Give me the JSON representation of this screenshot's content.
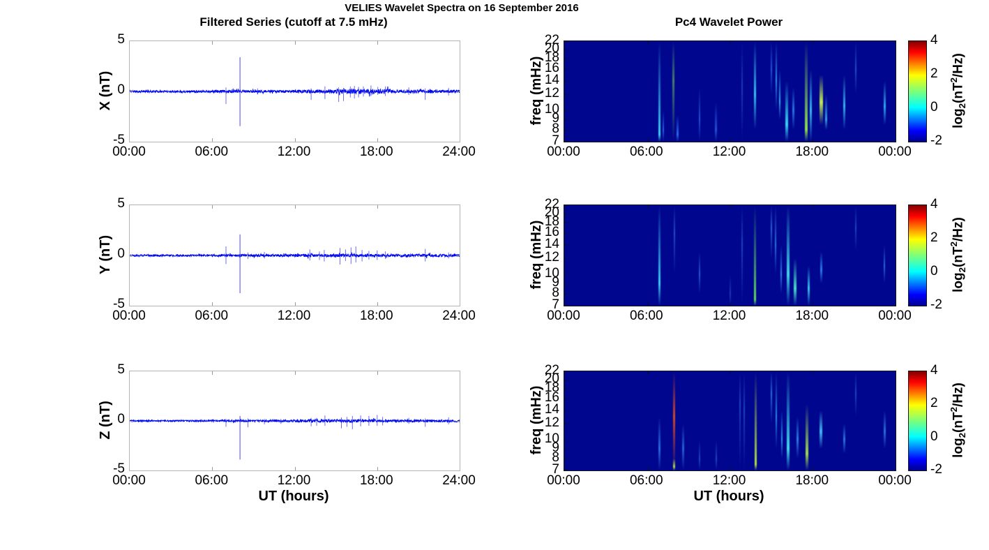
{
  "figure": {
    "main_title": "VELIES Wavelet Spectra on 16 September 2016",
    "background": "#ffffff"
  },
  "chart_data": {
    "time_series": {
      "type": "line",
      "title": "Filtered Series (cutoff at 7.5 mHz)",
      "xlabel": "UT (hours)",
      "x_ticks": [
        "00:00",
        "06:00",
        "12:00",
        "18:00",
        "24:00"
      ],
      "x_range_hours": [
        0,
        24
      ],
      "ylim": [
        -5,
        5
      ],
      "y_ticks": [
        "5",
        "0",
        "-5"
      ],
      "grid": false,
      "line_color": "#0008ee",
      "spike_color": "#3c3cf4",
      "panels": [
        {
          "ylabel": "X (nT)",
          "noise_profile": [
            [
              0,
              6,
              0.07
            ],
            [
              6,
              9,
              0.09
            ],
            [
              9,
              12,
              0.08
            ],
            [
              12,
              15,
              0.11
            ],
            [
              15,
              19,
              0.16
            ],
            [
              19,
              22,
              0.12
            ],
            [
              22,
              24,
              0.1
            ]
          ],
          "spikes": [
            [
              7.0,
              0.4,
              -1.25
            ],
            [
              8.02,
              3.4,
              -3.45
            ],
            [
              9.3,
              0.3,
              -0.3
            ],
            [
              13.2,
              0.3,
              -0.85
            ],
            [
              14.2,
              0.5,
              -0.75
            ],
            [
              15.2,
              0.4,
              -1.05
            ],
            [
              15.55,
              0.35,
              -0.95
            ],
            [
              16.05,
              0.5,
              -0.6
            ],
            [
              16.35,
              0.55,
              -0.7
            ],
            [
              16.65,
              0.45,
              -0.6
            ],
            [
              17.0,
              0.5,
              -0.5
            ],
            [
              17.55,
              0.6,
              -0.45
            ],
            [
              18.05,
              0.45,
              -0.35
            ],
            [
              18.6,
              0.5,
              -0.45
            ],
            [
              20.3,
              0.4,
              -0.35
            ],
            [
              21.5,
              0.3,
              -0.85
            ],
            [
              23.2,
              0.35,
              -0.4
            ]
          ]
        },
        {
          "ylabel": "Y (nT)",
          "noise_profile": [
            [
              0,
              6,
              0.06
            ],
            [
              6,
              12,
              0.08
            ],
            [
              12,
              18,
              0.1
            ],
            [
              18,
              24,
              0.09
            ]
          ],
          "spikes": [
            [
              7.0,
              0.9,
              -0.85
            ],
            [
              8.02,
              2.1,
              -3.75
            ],
            [
              8.6,
              0.3,
              -0.35
            ],
            [
              9.8,
              0.35,
              -0.3
            ],
            [
              13.1,
              0.6,
              -0.5
            ],
            [
              13.8,
              0.4,
              -0.45
            ],
            [
              14.15,
              0.55,
              -0.6
            ],
            [
              15.3,
              0.75,
              -0.9
            ],
            [
              15.7,
              0.6,
              -0.55
            ],
            [
              16.1,
              0.8,
              -0.85
            ],
            [
              16.45,
              0.9,
              -0.7
            ],
            [
              16.9,
              0.55,
              -0.6
            ],
            [
              17.4,
              0.45,
              -0.4
            ],
            [
              18.0,
              0.5,
              -0.45
            ],
            [
              18.6,
              0.4,
              -0.35
            ],
            [
              21.5,
              0.65,
              -0.6
            ],
            [
              23.2,
              0.3,
              -0.3
            ]
          ]
        },
        {
          "ylabel": "Z (nT)",
          "noise_profile": [
            [
              0,
              6,
              0.05
            ],
            [
              6,
              12,
              0.07
            ],
            [
              12,
              18,
              0.1
            ],
            [
              18,
              24,
              0.08
            ]
          ],
          "spikes": [
            [
              7.0,
              0.2,
              -0.6
            ],
            [
              8.02,
              0.5,
              -3.9
            ],
            [
              8.6,
              0.25,
              -0.65
            ],
            [
              9.8,
              0.2,
              -0.35
            ],
            [
              11.0,
              0.2,
              -0.3
            ],
            [
              13.2,
              0.3,
              -0.55
            ],
            [
              13.6,
              0.3,
              -0.5
            ],
            [
              14.2,
              0.55,
              -0.5
            ],
            [
              15.4,
              0.35,
              -0.75
            ],
            [
              15.8,
              0.4,
              -0.6
            ],
            [
              16.2,
              0.5,
              -0.85
            ],
            [
              16.8,
              0.55,
              -0.55
            ],
            [
              17.4,
              0.5,
              -0.5
            ],
            [
              18.0,
              0.6,
              -0.5
            ],
            [
              18.4,
              0.4,
              -0.45
            ],
            [
              20.3,
              0.3,
              -0.3
            ],
            [
              21.5,
              0.25,
              -0.6
            ],
            [
              23.2,
              0.35,
              -0.35
            ]
          ]
        }
      ]
    },
    "spectrograms": {
      "type": "heatmap",
      "title": "Pc4 Wavelet Power",
      "xlabel": "UT (hours)",
      "ylabel": "freq (mHz)",
      "x_ticks": [
        "00:00",
        "06:00",
        "12:00",
        "18:00",
        "00:00"
      ],
      "x_range_hours": [
        0,
        24
      ],
      "y_scale": "log",
      "y_ticks": [
        "22",
        "20",
        "18",
        "16",
        "14",
        "12",
        "10",
        "9",
        "8",
        "7"
      ],
      "freq_range_mhz": [
        7,
        22
      ],
      "background_color": "#00068e",
      "colorbar": {
        "ticks": [
          "4",
          "2",
          "0",
          "-2"
        ],
        "range": [
          -2,
          4
        ],
        "label_parts": {
          "prefix": "log",
          "sub": "2",
          "mid": "(nT",
          "sup": "2",
          "suffix": "/Hz)"
        },
        "gradient_stops": [
          [
            0,
            "#00008f"
          ],
          [
            0.11,
            "#0000ff"
          ],
          [
            0.34,
            "#00ffff"
          ],
          [
            0.5,
            "#7dff7a"
          ],
          [
            0.66,
            "#ffff00"
          ],
          [
            0.89,
            "#ff0000"
          ],
          [
            1,
            "#800000"
          ]
        ]
      },
      "panels": [
        {
          "component": "X",
          "streaks": [
            [
              6.9,
              7,
              22,
              7.6,
              "#3fd4f2",
              3
            ],
            [
              7.15,
              7,
              10,
              8,
              "#2a66e0",
              2
            ],
            [
              7.92,
              7,
              22,
              14,
              "#47806a",
              3
            ],
            [
              8.2,
              7,
              9.5,
              7.6,
              "#2a6ce8",
              3
            ],
            [
              9.8,
              7,
              13,
              9,
              "#2455d8",
              2
            ],
            [
              11.0,
              7,
              11,
              8,
              "#2452d4",
              3
            ],
            [
              12.9,
              7,
              22,
              13,
              "#1c3cba",
              2
            ],
            [
              13.8,
              8,
              22,
              12,
              "#38c4f2",
              3
            ],
            [
              15.0,
              12,
              22,
              16,
              "#2456d6",
              2
            ],
            [
              15.35,
              10,
              22,
              14,
              "#3390e6",
              2
            ],
            [
              15.6,
              9,
              16,
              11,
              "#34aef0",
              2
            ],
            [
              16.1,
              7,
              14,
              8.5,
              "#35d6f6",
              4
            ],
            [
              16.6,
              8,
              13,
              10,
              "#2a78e4",
              3
            ],
            [
              17.55,
              7,
              22,
              8,
              "#8fe04e",
              4
            ],
            [
              17.85,
              7,
              16,
              10,
              "#38bef0",
              3
            ],
            [
              18.6,
              8.5,
              15,
              11,
              "#c0ea52",
              5
            ],
            [
              18.95,
              8,
              12,
              9,
              "#34a4e8",
              3
            ],
            [
              20.3,
              8,
              15,
              10.5,
              "#38b4ee",
              3
            ],
            [
              21.1,
              12,
              22,
              16,
              "#2450cc",
              2
            ],
            [
              23.2,
              8.5,
              14,
              10.5,
              "#32acee",
              3
            ]
          ]
        },
        {
          "component": "Y",
          "streaks": [
            [
              6.9,
              7,
              22,
              9,
              "#3ccef2",
              3
            ],
            [
              8.0,
              10,
              22,
              16,
              "#274ec8",
              2
            ],
            [
              9.8,
              8,
              13,
              10,
              "#2a5cd8",
              2
            ],
            [
              12.0,
              7,
              10,
              8,
              "#1c3ab6",
              2
            ],
            [
              12.9,
              7,
              22,
              14,
              "#1f44c0",
              2
            ],
            [
              13.8,
              7,
              22,
              7.5,
              "#64dc5c",
              3
            ],
            [
              15.0,
              12,
              22,
              17,
              "#2a64d8",
              2
            ],
            [
              15.3,
              10,
              22,
              14,
              "#2c76e0",
              2
            ],
            [
              15.7,
              8,
              14,
              10,
              "#2c88e8",
              2
            ],
            [
              16.2,
              7,
              22,
              10,
              "#40d8ea",
              4
            ],
            [
              16.7,
              7,
              12,
              8.5,
              "#48e0ca",
              4
            ],
            [
              17.7,
              7,
              11,
              8.5,
              "#3ac8f0",
              3
            ],
            [
              18.6,
              9,
              13,
              10.5,
              "#2c80e8",
              3
            ],
            [
              21.1,
              13,
              22,
              17,
              "#2046c0",
              2
            ],
            [
              23.2,
              9,
              14,
              11,
              "#2a6cd8",
              2
            ]
          ]
        },
        {
          "component": "Z",
          "streaks": [
            [
              6.9,
              7,
              13,
              9,
              "#2a6ce0",
              3
            ],
            [
              7.95,
              7,
              22,
              13,
              "#d44a28",
              3
            ],
            [
              7.95,
              7,
              8,
              7.3,
              "#bce23e",
              3
            ],
            [
              8.6,
              7,
              12,
              9,
              "#2a60d8",
              3
            ],
            [
              9.8,
              7,
              10,
              8,
              "#2048c8",
              2
            ],
            [
              11.0,
              7,
              10,
              8,
              "#2048c8",
              2
            ],
            [
              12.75,
              7,
              22,
              15,
              "#1f44c0",
              2
            ],
            [
              13.05,
              7,
              22,
              14,
              "#1f44c0",
              2
            ],
            [
              13.85,
              7,
              22,
              7.5,
              "#b8e240",
              3
            ],
            [
              15.0,
              12,
              22,
              17,
              "#2a70e0",
              2
            ],
            [
              15.35,
              9,
              22,
              13,
              "#2c8ae8",
              2
            ],
            [
              15.75,
              8,
              14,
              10,
              "#2e9aec",
              2
            ],
            [
              16.2,
              7,
              22,
              9,
              "#42daee",
              4
            ],
            [
              16.9,
              8,
              13,
              10,
              "#2c80e4",
              3
            ],
            [
              17.6,
              7,
              15,
              8.5,
              "#a0de4c",
              4
            ],
            [
              18.6,
              9,
              14,
              11,
              "#44baf2",
              4
            ],
            [
              20.3,
              8.5,
              12,
              10,
              "#2c78e0",
              3
            ],
            [
              21.1,
              13,
              22,
              17,
              "#2046c0",
              2
            ],
            [
              23.2,
              9,
              14,
              11,
              "#2c70dc",
              3
            ]
          ]
        }
      ]
    }
  }
}
